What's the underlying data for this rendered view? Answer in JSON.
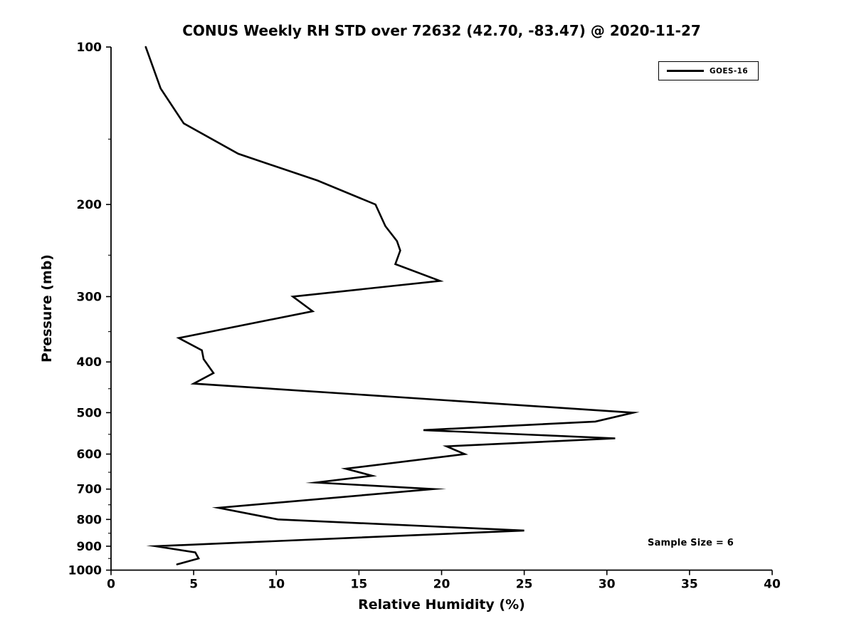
{
  "chart_data": {
    "type": "line",
    "title": "CONUS Weekly RH STD over 72632 (42.70, -83.47) @ 2020-11-27",
    "xlabel": "Relative Humidity (%)",
    "ylabel": "Pressure (mb)",
    "xlim": [
      0,
      40
    ],
    "ylim": [
      1000,
      100
    ],
    "yscale": "log",
    "grid": false,
    "xticks": [
      0,
      5,
      10,
      15,
      20,
      25,
      30,
      35,
      40
    ],
    "yticks": [
      100,
      200,
      300,
      400,
      500,
      600,
      700,
      800,
      900,
      1000
    ],
    "yminorticks": [
      150,
      250,
      350,
      450,
      550,
      650,
      750,
      850,
      950
    ],
    "legend": {
      "position": "upper right",
      "entries": [
        "GOES-16"
      ]
    },
    "annotation": "Sample Size = 6",
    "line_color": "#000000",
    "series": [
      {
        "name": "GOES-16",
        "points_pressure_rh": [
          [
            100,
            2.1
          ],
          [
            120,
            3.0
          ],
          [
            140,
            4.4
          ],
          [
            160,
            7.7
          ],
          [
            180,
            12.5
          ],
          [
            200,
            16.0
          ],
          [
            220,
            16.6
          ],
          [
            235,
            17.3
          ],
          [
            245,
            17.5
          ],
          [
            260,
            17.2
          ],
          [
            280,
            19.9
          ],
          [
            300,
            11.0
          ],
          [
            320,
            12.2
          ],
          [
            360,
            4.1
          ],
          [
            380,
            5.5
          ],
          [
            395,
            5.6
          ],
          [
            420,
            6.2
          ],
          [
            440,
            5.0
          ],
          [
            500,
            31.6
          ],
          [
            520,
            29.3
          ],
          [
            540,
            18.9
          ],
          [
            560,
            30.5
          ],
          [
            580,
            20.3
          ],
          [
            600,
            21.4
          ],
          [
            640,
            14.2
          ],
          [
            660,
            15.8
          ],
          [
            680,
            12.4
          ],
          [
            700,
            19.5
          ],
          [
            760,
            6.5
          ],
          [
            800,
            10.1
          ],
          [
            840,
            25.0
          ],
          [
            900,
            2.7
          ],
          [
            925,
            5.1
          ],
          [
            950,
            5.3
          ],
          [
            975,
            4.0
          ]
        ]
      }
    ]
  }
}
